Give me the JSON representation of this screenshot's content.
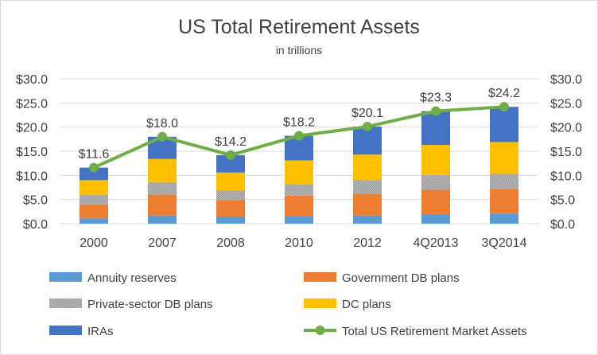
{
  "chart_data": {
    "type": "bar",
    "stacked": true,
    "title": "US Total Retirement Assets",
    "subtitle": "in trillions",
    "categories": [
      "2000",
      "2007",
      "2008",
      "2010",
      "2012",
      "4Q2013",
      "3Q2014"
    ],
    "ylim": [
      0,
      30
    ],
    "yticks": [
      "$0.0",
      "$5.0",
      "$10.0",
      "$15.0",
      "$20.0",
      "$25.0",
      "$30.0"
    ],
    "grid": true,
    "legend_position": "bottom",
    "series": [
      {
        "name": "Annuity reserves",
        "type": "bar",
        "color": "#5B9BD5",
        "values": [
          1.1,
          1.7,
          1.4,
          1.6,
          1.7,
          2.0,
          2.1
        ]
      },
      {
        "name": "Government DB plans",
        "type": "bar",
        "color": "#ED7D31",
        "values": [
          2.9,
          4.3,
          3.5,
          4.2,
          4.4,
          5.0,
          5.1
        ]
      },
      {
        "name": "Private-sector DB plans",
        "type": "bar",
        "color": "#A5A5A5",
        "pattern": "dots",
        "values": [
          2.0,
          2.6,
          2.0,
          2.4,
          2.9,
          3.1,
          3.1
        ]
      },
      {
        "name": "DC plans",
        "type": "bar",
        "color": "#FFC000",
        "values": [
          3.0,
          4.8,
          3.7,
          4.9,
          5.3,
          6.2,
          6.6
        ]
      },
      {
        "name": "IRAs",
        "type": "bar",
        "color": "#4472C4",
        "values": [
          2.6,
          4.6,
          3.6,
          5.1,
          5.8,
          7.0,
          7.3
        ]
      },
      {
        "name": "Total US Retirement Market Assets",
        "type": "line",
        "color": "#70AD47",
        "values": [
          11.6,
          18.0,
          14.2,
          18.2,
          20.1,
          23.3,
          24.2
        ]
      }
    ],
    "data_labels": [
      "$11.6",
      "$18.0",
      "$14.2",
      "$18.2",
      "$20.1",
      "$23.3",
      "$24.2"
    ]
  }
}
